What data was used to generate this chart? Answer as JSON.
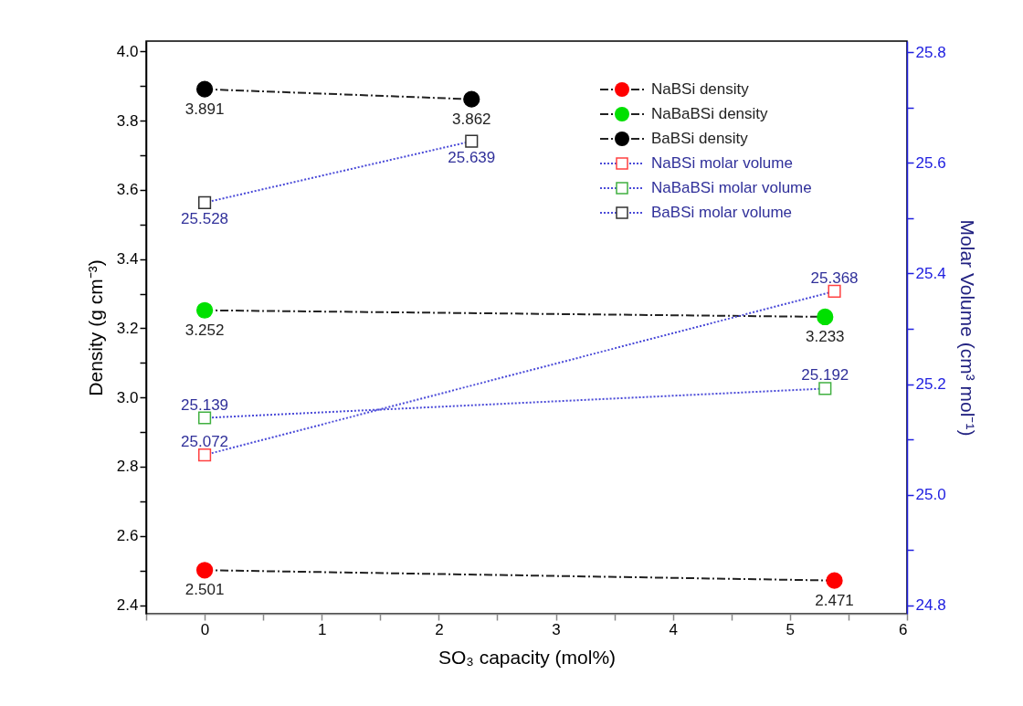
{
  "chart_data": {
    "type": "line",
    "xlabel": "SO₃ capacity (mol%)",
    "ylabel": "Density (g cm⁻³)",
    "y2label": "Molar Volume (cm³ mol⁻¹)",
    "xlim": [
      -0.5,
      6
    ],
    "xticks": [
      {
        "value": -0.5,
        "label": null
      },
      0,
      {
        "value": 0.5,
        "label": null
      },
      1,
      {
        "value": 1.5,
        "label": null
      },
      2,
      {
        "value": 2.5,
        "label": null
      },
      3,
      {
        "value": 3.5,
        "label": null
      },
      4,
      {
        "value": 4.5,
        "label": null
      },
      5,
      {
        "value": 5.5,
        "label": null
      },
      6
    ],
    "ylim": [
      2.375,
      4.03
    ],
    "yticks": [
      2.4,
      {
        "value": 2.5,
        "label": null
      },
      2.6,
      {
        "value": 2.7,
        "label": null
      },
      2.8,
      {
        "value": 2.9,
        "label": null
      },
      {
        "value": 3,
        "label": "3.0"
      },
      {
        "value": 3.1,
        "label": null
      },
      3.2,
      {
        "value": 3.3,
        "label": null
      },
      3.4,
      {
        "value": 3.5,
        "label": null
      },
      3.6,
      {
        "value": 3.7,
        "label": null
      },
      3.8,
      {
        "value": 3.9,
        "label": null
      },
      {
        "value": 4,
        "label": "4.0"
      }
    ],
    "y2lim": [
      24.785,
      25.82
    ],
    "y2ticks": [
      24.8,
      {
        "value": 24.9,
        "label": null
      },
      {
        "value": 25,
        "label": "25.0"
      },
      {
        "value": 25.1,
        "label": null
      },
      25.2,
      {
        "value": 25.3,
        "label": null
      },
      25.4,
      {
        "value": 25.5,
        "label": null
      },
      25.6,
      {
        "value": 25.7,
        "label": null
      },
      25.8
    ],
    "grid": false,
    "legend": "top right",
    "data_labels": true,
    "series": [
      {
        "name": "NaBSi density",
        "color": "#ff0000",
        "x": [
          0,
          5.38
        ],
        "values": [
          2.501,
          2.471
        ],
        "marker": "circle",
        "line_style": "dashed"
      },
      {
        "name": "NaBaBSi density",
        "color": "#00e000",
        "x": [
          0,
          5.3
        ],
        "values": [
          3.252,
          3.233
        ],
        "marker": "circle",
        "line_style": "dashed"
      },
      {
        "name": "BaBSi density",
        "color": "#000000",
        "x": [
          0,
          2.28
        ],
        "values": [
          3.891,
          3.862
        ],
        "marker": "circle",
        "line_style": "dashed"
      },
      {
        "name": "NaBSi molar volume",
        "color": "#ff4040",
        "x": [
          0,
          5.38
        ],
        "values": [
          25.072,
          25.368
        ],
        "marker": "square",
        "line_style": "dotted",
        "axis": "y2"
      },
      {
        "name": "NaBaBSi molar volume",
        "color": "#40b040",
        "x": [
          0,
          5.3
        ],
        "values": [
          25.139,
          25.192
        ],
        "marker": "square",
        "line_style": "dotted",
        "axis": "y2"
      },
      {
        "name": "BaBSi molar volume",
        "color": "#333333",
        "x": [
          0,
          2.28
        ],
        "values": [
          25.528,
          25.639
        ],
        "marker": "square",
        "line_style": "dotted",
        "axis": "y2"
      }
    ]
  }
}
